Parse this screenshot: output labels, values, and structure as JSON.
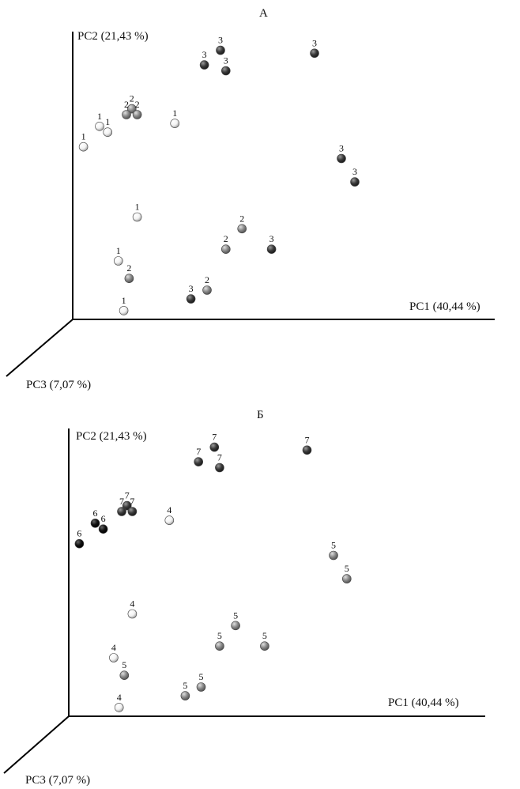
{
  "chart_data": [
    {
      "type": "scatter",
      "panel_label": "А",
      "axes": {
        "x": "PC1 (40,44 %)",
        "y": "PC2 (21,43 %)",
        "z": "PC3 (7,07 %)"
      },
      "points": [
        {
          "label": "3",
          "tone": "dark",
          "x": 0.55,
          "y": 0.92
        },
        {
          "label": "3",
          "tone": "dark",
          "x": 0.49,
          "y": 0.87
        },
        {
          "label": "3",
          "tone": "dark",
          "x": 0.57,
          "y": 0.85
        },
        {
          "label": "3",
          "tone": "dark",
          "x": 0.9,
          "y": 0.91
        },
        {
          "label": "3",
          "tone": "dark",
          "x": 1.0,
          "y": 0.55
        },
        {
          "label": "3",
          "tone": "dark",
          "x": 1.05,
          "y": 0.47
        },
        {
          "label": "3",
          "tone": "dark",
          "x": 0.74,
          "y": 0.24
        },
        {
          "label": "3",
          "tone": "dark",
          "x": 0.44,
          "y": 0.07
        },
        {
          "label": "2",
          "tone": "mid",
          "x": 0.22,
          "y": 0.72
        },
        {
          "label": "2",
          "tone": "mid",
          "x": 0.2,
          "y": 0.7
        },
        {
          "label": "2",
          "tone": "mid",
          "x": 0.24,
          "y": 0.7
        },
        {
          "label": "2",
          "tone": "mid",
          "x": 0.63,
          "y": 0.31
        },
        {
          "label": "2",
          "tone": "mid",
          "x": 0.57,
          "y": 0.24
        },
        {
          "label": "2",
          "tone": "mid",
          "x": 0.5,
          "y": 0.1
        },
        {
          "label": "2",
          "tone": "mid",
          "x": 0.21,
          "y": 0.14
        },
        {
          "label": "1",
          "tone": "light",
          "x": 0.1,
          "y": 0.66
        },
        {
          "label": "1",
          "tone": "light",
          "x": 0.13,
          "y": 0.64
        },
        {
          "label": "1",
          "tone": "light",
          "x": 0.38,
          "y": 0.67
        },
        {
          "label": "1",
          "tone": "light",
          "x": 0.04,
          "y": 0.59
        },
        {
          "label": "1",
          "tone": "light",
          "x": 0.24,
          "y": 0.35
        },
        {
          "label": "1",
          "tone": "light",
          "x": 0.17,
          "y": 0.2
        },
        {
          "label": "1",
          "tone": "light",
          "x": 0.19,
          "y": 0.03
        }
      ]
    },
    {
      "type": "scatter",
      "panel_label": "Б",
      "axes": {
        "x": "PC1 (40,44 %)",
        "y": "PC2 (21,43 %)",
        "z": "PC3 (7,07 %)"
      },
      "points": [
        {
          "label": "7",
          "tone": "dark",
          "x": 0.55,
          "y": 0.92
        },
        {
          "label": "7",
          "tone": "dark",
          "x": 0.49,
          "y": 0.87
        },
        {
          "label": "7",
          "tone": "dark",
          "x": 0.57,
          "y": 0.85
        },
        {
          "label": "7",
          "tone": "dark",
          "x": 0.9,
          "y": 0.91
        },
        {
          "label": "7",
          "tone": "dark",
          "x": 0.22,
          "y": 0.72
        },
        {
          "label": "7",
          "tone": "dark",
          "x": 0.2,
          "y": 0.7
        },
        {
          "label": "7",
          "tone": "dark",
          "x": 0.24,
          "y": 0.7
        },
        {
          "label": "6",
          "tone": "black",
          "x": 0.1,
          "y": 0.66
        },
        {
          "label": "6",
          "tone": "black",
          "x": 0.13,
          "y": 0.64
        },
        {
          "label": "6",
          "tone": "black",
          "x": 0.04,
          "y": 0.59
        },
        {
          "label": "4",
          "tone": "light",
          "x": 0.38,
          "y": 0.67
        },
        {
          "label": "4",
          "tone": "light",
          "x": 0.24,
          "y": 0.35
        },
        {
          "label": "4",
          "tone": "light",
          "x": 0.17,
          "y": 0.2
        },
        {
          "label": "4",
          "tone": "light",
          "x": 0.19,
          "y": 0.03
        },
        {
          "label": "5",
          "tone": "mid",
          "x": 1.0,
          "y": 0.55
        },
        {
          "label": "5",
          "tone": "mid",
          "x": 1.05,
          "y": 0.47
        },
        {
          "label": "5",
          "tone": "mid",
          "x": 0.63,
          "y": 0.31
        },
        {
          "label": "5",
          "tone": "mid",
          "x": 0.74,
          "y": 0.24
        },
        {
          "label": "5",
          "tone": "mid",
          "x": 0.57,
          "y": 0.24
        },
        {
          "label": "5",
          "tone": "mid",
          "x": 0.5,
          "y": 0.1
        },
        {
          "label": "5",
          "tone": "mid",
          "x": 0.44,
          "y": 0.07
        },
        {
          "label": "5",
          "tone": "mid",
          "x": 0.21,
          "y": 0.14
        }
      ]
    }
  ],
  "tones": {
    "dark": "#3a3a3a",
    "mid": "#8a8a8a",
    "light": "#f2f2f2",
    "black": "#111111"
  },
  "grid": false,
  "legend": "none"
}
